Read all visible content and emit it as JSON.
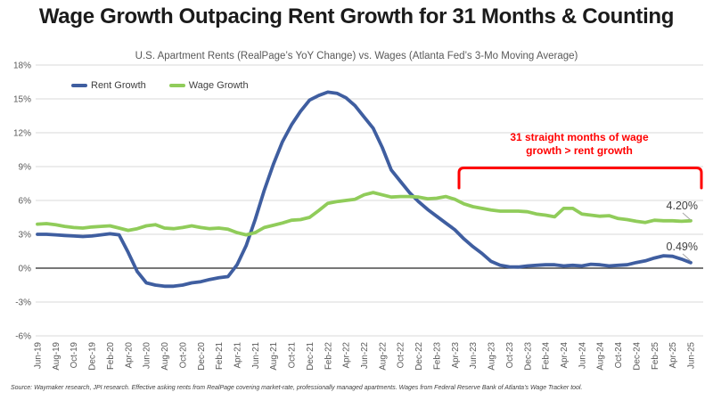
{
  "title": "Wage Growth Outpacing Rent Growth for 31 Months & Counting",
  "subtitle": "U.S. Apartment Rents (RealPage’s YoY Change) vs. Wages (Atlanta Fed’s 3-Mo Moving Average)",
  "annotation": {
    "line1": "31 straight months of wage",
    "line2": "growth > rent growth",
    "color": "#FF0000"
  },
  "end_labels": {
    "wage_growth": "4.20%",
    "rent_growth": "0.49%"
  },
  "source": "Source: Waymaker research, JPI research. Effective asking rents from RealPage covering market-rate, professionally managed apartments. Wages from Federal Reserve Bank of Atlanta’s Wage Tracker tool.",
  "chart_data": {
    "type": "line",
    "x_unit": "month",
    "x_start": "Jun-19",
    "x_end": "Jun-25",
    "points_per_tick": 2,
    "x_tick_labels": [
      "Jun-19",
      "Aug-19",
      "Oct-19",
      "Dec-19",
      "Feb-20",
      "Apr-20",
      "Jun-20",
      "Aug-20",
      "Oct-20",
      "Dec-20",
      "Feb-21",
      "Apr-21",
      "Jun-21",
      "Aug-21",
      "Oct-21",
      "Dec-21",
      "Feb-22",
      "Apr-22",
      "Jun-22",
      "Aug-22",
      "Oct-22",
      "Dec-22",
      "Feb-23",
      "Apr-23",
      "Jun-23",
      "Aug-23",
      "Oct-23",
      "Dec-23",
      "Feb-24",
      "Apr-24",
      "Jun-24",
      "Aug-24",
      "Oct-24",
      "Dec-24",
      "Feb-25",
      "Apr-25",
      "Jun-25"
    ],
    "ylim": [
      -6,
      18
    ],
    "ytick_step": 3,
    "ytick_labels": [
      "-6%",
      "-3%",
      "0%",
      "3%",
      "6%",
      "9%",
      "12%",
      "15%",
      "18%"
    ],
    "grid": true,
    "grid_color": "#D9D9D9",
    "zero_axis_color": "#262626",
    "tick_label_color": "#595959",
    "legend_position": "top-left",
    "series": [
      {
        "name": "Rent Growth",
        "color": "#3F5EA0",
        "values": [
          3.0,
          3.0,
          2.95,
          2.9,
          2.85,
          2.8,
          2.85,
          2.95,
          3.05,
          2.95,
          1.4,
          -0.3,
          -1.3,
          -1.5,
          -1.6,
          -1.6,
          -1.5,
          -1.3,
          -1.2,
          -1.0,
          -0.85,
          -0.75,
          0.3,
          2.0,
          4.3,
          6.9,
          9.2,
          11.2,
          12.7,
          13.9,
          14.9,
          15.3,
          15.6,
          15.5,
          15.1,
          14.4,
          13.4,
          12.4,
          10.7,
          8.7,
          7.7,
          6.7,
          5.9,
          5.2,
          4.6,
          4.0,
          3.4,
          2.6,
          1.9,
          1.3,
          0.6,
          0.25,
          0.12,
          0.1,
          0.2,
          0.25,
          0.3,
          0.3,
          0.2,
          0.25,
          0.2,
          0.35,
          0.3,
          0.2,
          0.25,
          0.3,
          0.5,
          0.65,
          0.9,
          1.1,
          1.05,
          0.8,
          0.49
        ]
      },
      {
        "name": "Wage Growth",
        "color": "#90CC5A",
        "values": [
          3.9,
          3.95,
          3.85,
          3.7,
          3.6,
          3.55,
          3.65,
          3.7,
          3.75,
          3.55,
          3.35,
          3.5,
          3.75,
          3.85,
          3.55,
          3.5,
          3.6,
          3.75,
          3.6,
          3.5,
          3.55,
          3.45,
          3.15,
          2.95,
          3.15,
          3.6,
          3.8,
          4.0,
          4.25,
          4.3,
          4.5,
          5.1,
          5.75,
          5.9,
          6.0,
          6.1,
          6.5,
          6.7,
          6.5,
          6.3,
          6.35,
          6.35,
          6.3,
          6.15,
          6.2,
          6.35,
          6.1,
          5.7,
          5.45,
          5.3,
          5.15,
          5.05,
          5.05,
          5.05,
          5.0,
          4.8,
          4.7,
          4.55,
          5.3,
          5.3,
          4.8,
          4.7,
          4.6,
          4.65,
          4.4,
          4.3,
          4.15,
          4.05,
          4.25,
          4.2,
          4.2,
          4.15,
          4.2
        ]
      }
    ]
  }
}
